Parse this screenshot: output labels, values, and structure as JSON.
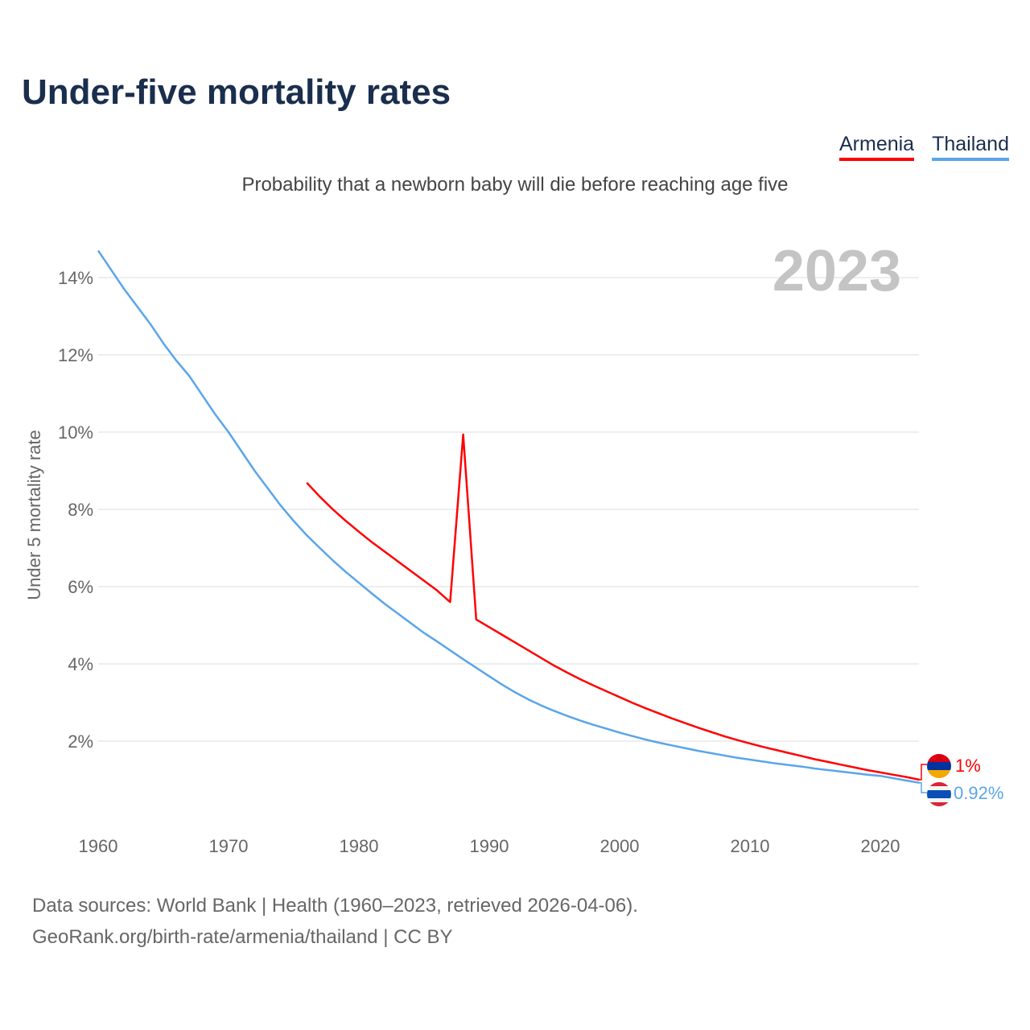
{
  "title": "Under-five mortality rates",
  "subtitle": "Probability that a newborn baby will die before reaching age five",
  "legend": [
    "Armenia",
    "Thailand"
  ],
  "year_label": "2023",
  "end_labels": {
    "armenia": "1%",
    "thailand": "0.92%"
  },
  "source": {
    "line1": "Data sources: World Bank | Health (1960–2023, retrieved 2026-04-06).",
    "line2": "GeoRank.org/birth-rate/armenia/thailand | CC BY"
  },
  "colors": {
    "armenia": "#ff0000",
    "thailand": "#5aa5ea"
  },
  "chart_data": {
    "type": "line",
    "title": "Under-five mortality rates",
    "ylabel": "Under 5 mortality rate",
    "xlabel": "",
    "xlim": [
      1960,
      2023
    ],
    "ylim": [
      0,
      15
    ],
    "x_ticks": [
      "1960",
      "1970",
      "1980",
      "1990",
      "2000",
      "2010",
      "2020"
    ],
    "y_ticks": [
      "2%",
      "4%",
      "6%",
      "8%",
      "10%",
      "12%",
      "14%"
    ],
    "grid": true,
    "legend_position": "top-right",
    "series": [
      {
        "name": "Armenia",
        "start_year": 1976,
        "values": [
          8.69,
          8.33,
          8.0,
          7.7,
          7.42,
          7.15,
          6.9,
          6.65,
          6.4,
          6.15,
          5.9,
          5.6,
          9.94,
          5.15,
          4.95,
          4.75,
          4.55,
          4.35,
          4.15,
          3.95,
          3.77,
          3.6,
          3.44,
          3.29,
          3.14,
          2.99,
          2.85,
          2.72,
          2.59,
          2.47,
          2.35,
          2.24,
          2.13,
          2.03,
          1.94,
          1.85,
          1.77,
          1.69,
          1.61,
          1.53,
          1.46,
          1.39,
          1.32,
          1.25,
          1.19,
          1.13,
          1.07,
          1.0
        ]
      },
      {
        "name": "Thailand",
        "start_year": 1960,
        "values": [
          14.7,
          14.2,
          13.7,
          13.25,
          12.8,
          12.3,
          11.85,
          11.45,
          10.95,
          10.45,
          10.0,
          9.5,
          9.0,
          8.55,
          8.1,
          7.7,
          7.33,
          7.0,
          6.68,
          6.38,
          6.1,
          5.82,
          5.55,
          5.3,
          5.05,
          4.8,
          4.58,
          4.35,
          4.12,
          3.9,
          3.68,
          3.46,
          3.26,
          3.08,
          2.92,
          2.78,
          2.65,
          2.53,
          2.42,
          2.32,
          2.22,
          2.13,
          2.04,
          1.96,
          1.89,
          1.82,
          1.75,
          1.69,
          1.63,
          1.57,
          1.52,
          1.47,
          1.42,
          1.38,
          1.34,
          1.29,
          1.25,
          1.21,
          1.17,
          1.13,
          1.1,
          1.04,
          0.98,
          0.92
        ]
      }
    ]
  }
}
